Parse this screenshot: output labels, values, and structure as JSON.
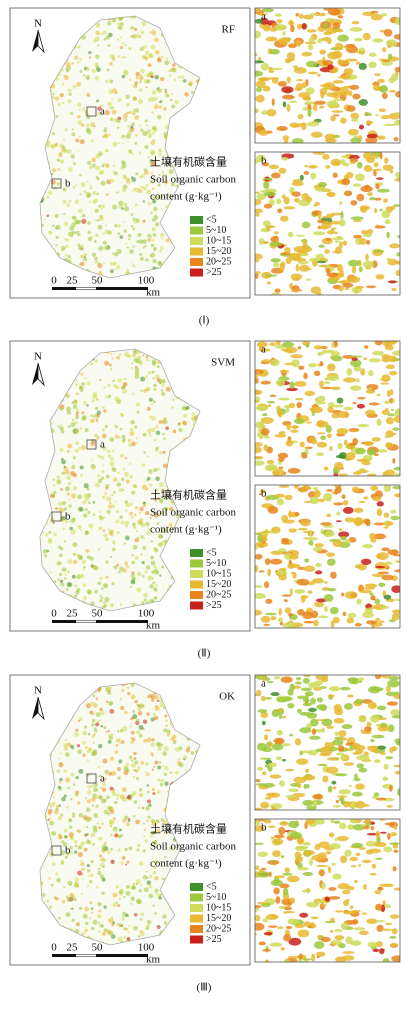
{
  "north_label": "N",
  "site_labels": [
    "a",
    "b"
  ],
  "legend": {
    "title_lines": [
      "土壤有机碳含量",
      "Soil organic carbon",
      "content (g·kg⁻¹)"
    ],
    "items": [
      {
        "label": "<5",
        "color": "#3f8f2a"
      },
      {
        "label": "5~10",
        "color": "#9cc83c"
      },
      {
        "label": "10~15",
        "color": "#cfdc5a"
      },
      {
        "label": "15~20",
        "color": "#e8b830"
      },
      {
        "label": "20~25",
        "color": "#e8851e"
      },
      {
        "label": ">25",
        "color": "#c8201c"
      }
    ]
  },
  "scale_bar": {
    "ticks": [
      "0",
      "25",
      "50",
      "100"
    ],
    "unit": "km"
  },
  "panels": [
    {
      "model": "RF",
      "label": "(Ⅰ)"
    },
    {
      "model": "SVM",
      "label": "(Ⅱ)"
    },
    {
      "model": "OK",
      "label": "(Ⅲ)"
    }
  ]
}
